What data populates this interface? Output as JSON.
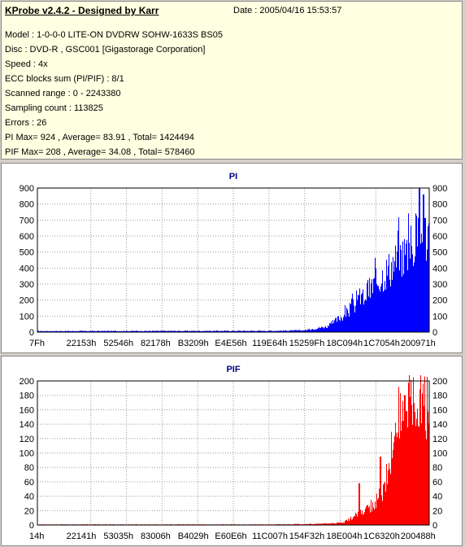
{
  "header": {
    "title": "KProbe v2.4.2 - Designed by Karr",
    "date": "Date : 2005/04/16 15:53:57",
    "lines": [
      "Model : 1-0-0-0 LITE-ON DVDRW SOHW-1633S BS05",
      "Disc : DVD-R , GSC001 [Gigastorage Corporation]",
      "Speed : 4x",
      "ECC blocks sum (PI/PIF) : 8/1",
      "Scanned range : 0 - 2243380",
      "Sampling count : 113825",
      "Errors : 26",
      "PI Max= 924 , Average= 83.91 , Total= 1424494",
      "PIF Max= 208 , Average= 34.08 , Total= 578460"
    ]
  },
  "colors": {
    "pi": "#0000ff",
    "pif": "#ff0000",
    "title": "#000080",
    "info_bg": "#ffffe1"
  },
  "chart_data": [
    {
      "type": "bar",
      "title": "PI",
      "ylim": [
        0,
        900
      ],
      "yticks": [
        "0",
        "100",
        "200",
        "300",
        "400",
        "500",
        "600",
        "700",
        "800",
        "900"
      ],
      "xtick_labels": [
        "7Fh",
        "22153h",
        "52546h",
        "82178h",
        "B3209h",
        "E4E56h",
        "119E64h",
        "15259Fh",
        "18C094h",
        "1C7054h",
        "200971h"
      ],
      "grid": true,
      "profile_x": [
        0,
        0.6,
        0.68,
        0.74,
        0.78,
        0.82,
        0.86,
        0.9,
        0.94,
        0.97,
        1.0
      ],
      "profile_y": [
        8,
        10,
        14,
        45,
        130,
        240,
        380,
        510,
        640,
        740,
        790
      ],
      "peaks": [
        {
          "x": 0.975,
          "y": 924
        },
        {
          "x": 0.985,
          "y": 860
        }
      ]
    },
    {
      "type": "bar",
      "title": "PIF",
      "ylim": [
        0,
        208
      ],
      "yticks": [
        "0",
        "20",
        "40",
        "60",
        "80",
        "100",
        "120",
        "140",
        "160",
        "180",
        "200"
      ],
      "xtick_labels": [
        "14h",
        "22141h",
        "53035h",
        "83006h",
        "B4029h",
        "E60E6h",
        "11C007h",
        "154F32h",
        "18E004h",
        "1C6320h",
        "200488h"
      ],
      "grid": true,
      "profile_x": [
        0,
        0.6,
        0.72,
        0.78,
        0.82,
        0.86,
        0.88,
        0.9,
        0.92,
        0.94,
        0.96,
        1.0
      ],
      "profile_y": [
        1,
        1,
        2,
        4,
        20,
        35,
        60,
        120,
        170,
        205,
        208,
        208
      ],
      "peaks": [
        {
          "x": 0.82,
          "y": 58
        },
        {
          "x": 0.875,
          "y": 95
        }
      ]
    }
  ]
}
